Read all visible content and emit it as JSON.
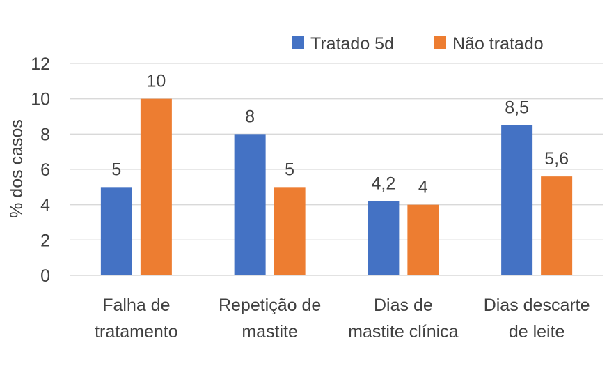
{
  "chart_data": {
    "type": "bar",
    "ylabel": "% dos casos",
    "ylim": [
      0,
      12
    ],
    "yticks": [
      "0",
      "2",
      "4",
      "6",
      "8",
      "10",
      "12"
    ],
    "grid": true,
    "legend_position": "top-right",
    "categories": [
      [
        "Falha de",
        "tratamento"
      ],
      [
        "Repetição de",
        "mastite"
      ],
      [
        "Dias de",
        "mastite clínica"
      ],
      [
        "Dias descarte",
        "de leite"
      ]
    ],
    "series": [
      {
        "name": "Tratado 5d",
        "color": "#4472c4",
        "values": [
          5,
          8,
          4.2,
          8.5
        ],
        "labels": [
          "5",
          "8",
          "4,2",
          "8,5"
        ]
      },
      {
        "name": "Não tratado",
        "color": "#ed7d31",
        "values": [
          10,
          5,
          4,
          5.6
        ],
        "labels": [
          "10",
          "5",
          "4",
          "5,6"
        ]
      }
    ]
  }
}
